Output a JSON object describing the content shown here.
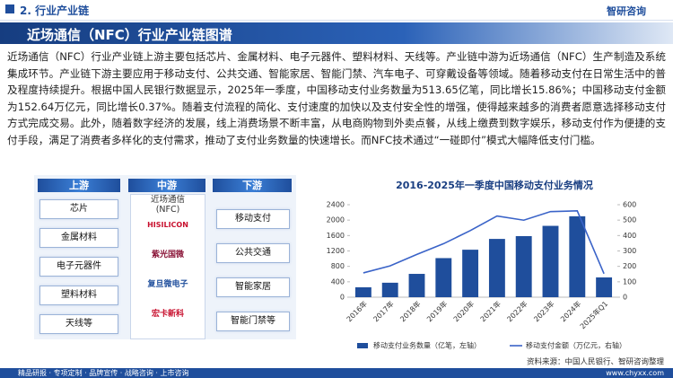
{
  "header": {
    "section": "2. 行业产业链",
    "logo": "智研咨询"
  },
  "title": "近场通信（NFC）行业产业链图谱",
  "paragraph": "近场通信（NFC）行业产业链上游主要包括芯片、金属材料、电子元器件、塑料材料、天线等。产业链中游为近场通信（NFC）生产制造及系统集成环节。产业链下游主要应用于移动支付、公共交通、智能家居、智能门禁、汽车电子、可穿戴设备等领域。随着移动支付在日常生活中的普及程度持续提升。根据中国人民银行数据显示，2025年一季度，中国移动支付业务数量为513.65亿笔，同比增长15.86%；中国移动支付金额为152.64万亿元，同比增长0.37%。随着支付流程的简化、支付速度的加快以及支付安全性的增强，使得越来越多的消费者愿意选择移动支付方式完成交易。此外，随着数字经济的发展，线上消费场景不断丰富，从电商购物到外卖点餐，从线上缴费到数字娱乐，移动支付作为便捷的支付手段，满足了消费者多样化的支付需求，推动了支付业务数量的快速增长。而NFC技术通过“一碰即付”模式大幅降低支付门槛。",
  "diagram": {
    "upstream": {
      "label": "上游",
      "items": [
        "芯片",
        "金属材料",
        "电子元器件",
        "塑料材料",
        "天线等"
      ]
    },
    "midstream": {
      "label": "中游",
      "subtitle": "近场通信\n(NFC)",
      "companies": [
        "HISILICON",
        "紫光国微",
        "复旦微电子",
        "宏卡新科"
      ]
    },
    "downstream": {
      "label": "下游",
      "items": [
        "移动支付",
        "公共交通",
        "智能家居",
        "智能门禁等"
      ]
    }
  },
  "chart_data": {
    "type": "bar",
    "title": "2016-2025年一季度中国移动支付业务情况",
    "categories": [
      "2016年",
      "2017年",
      "2018年",
      "2019年",
      "2020年",
      "2021年",
      "2022年",
      "2023年",
      "2024年",
      "2025年Q1"
    ],
    "series": [
      {
        "name": "移动支付业务数量（亿笔，左轴）",
        "color": "#1f4e9c",
        "type": "bar",
        "values": [
          257.1,
          375.5,
          605.3,
          1014.3,
          1232.2,
          1512.3,
          1585.1,
          1851.5,
          2100,
          513.65
        ]
      },
      {
        "name": "移动支付金额（万亿元，右轴）",
        "color": "#3a63c8",
        "type": "line",
        "axis": "y2",
        "values": [
          157.6,
          202.9,
          277.4,
          347.1,
          432.2,
          527.0,
          499.6,
          555.3,
          560,
          152.64
        ]
      }
    ],
    "ylim": [
      0,
      2400
    ],
    "yticks": [
      0,
      400,
      800,
      1200,
      1600,
      2000,
      2400
    ],
    "y2lim": [
      0,
      600
    ],
    "y2ticks": [
      0,
      100,
      200,
      300,
      400,
      500,
      600
    ],
    "legend": "bottom"
  },
  "source": "资料来源：中国人民银行、智研咨询整理",
  "footer": {
    "services": "精品研报 · 专项定制 · 品牌宣传 · 战略咨询 · 上市咨询",
    "website": "www.chyxx.com"
  }
}
